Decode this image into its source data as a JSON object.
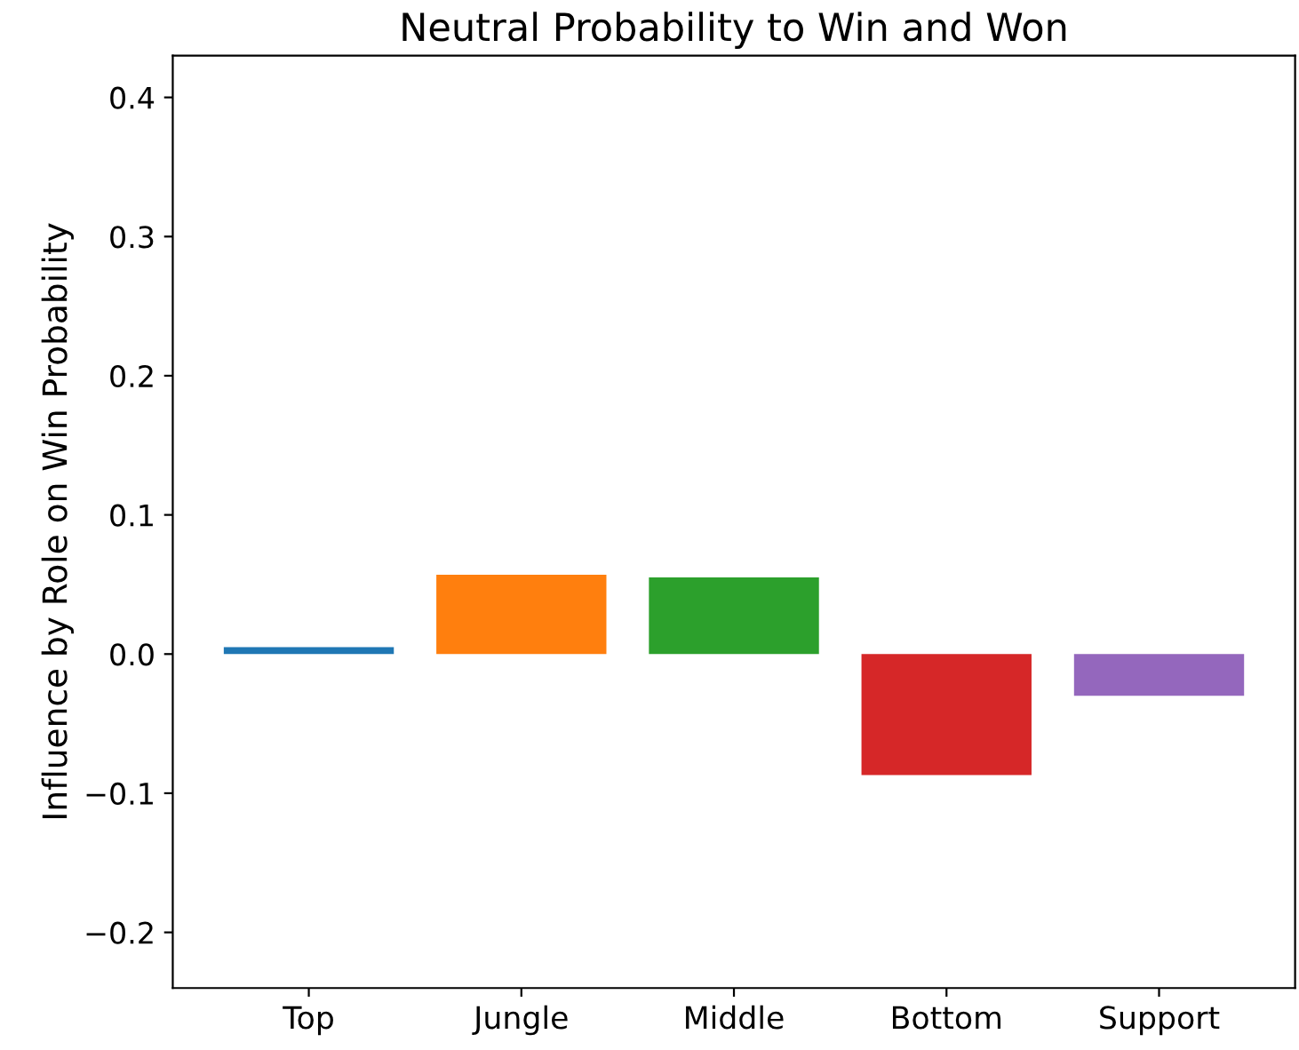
{
  "chart_data": {
    "type": "bar",
    "title": "Neutral Probability to Win and Won",
    "ylabel": "Influence by Role on Win Probability",
    "categories": [
      "Top",
      "Jungle",
      "Middle",
      "Bottom",
      "Support"
    ],
    "values": [
      0.005,
      0.057,
      0.055,
      -0.087,
      -0.03
    ],
    "colors": [
      "#1f77b4",
      "#ff7f0e",
      "#2ca02c",
      "#d62728",
      "#9467bd"
    ],
    "ylim": [
      -0.24,
      0.43
    ],
    "yticks": [
      {
        "value": -0.2,
        "label": "−0.2"
      },
      {
        "value": -0.1,
        "label": "−0.1"
      },
      {
        "value": 0,
        "label": "0.0"
      },
      0.1,
      0.2,
      0.3,
      0.4
    ],
    "grid": false,
    "legend": false
  }
}
